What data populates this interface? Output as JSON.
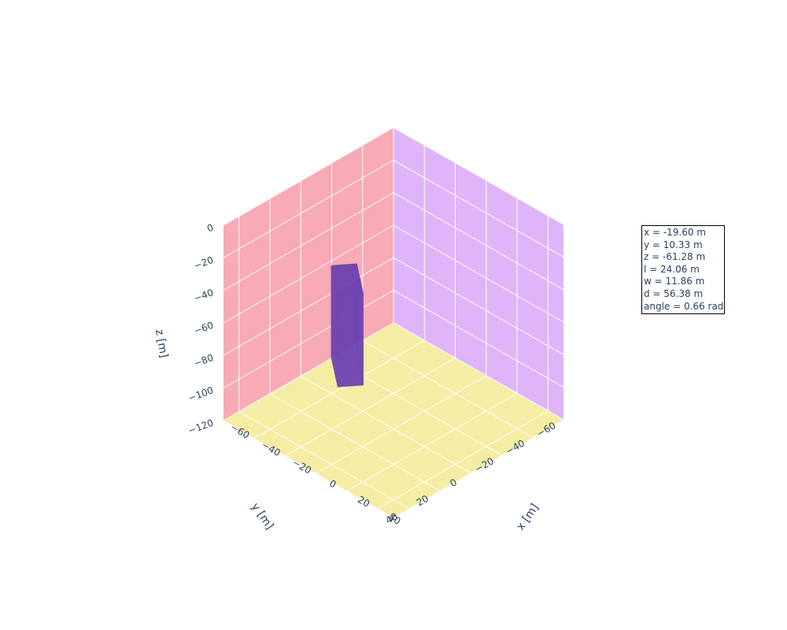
{
  "chart_data": {
    "type": "mesh3d",
    "axes": {
      "x": {
        "title": "x [m]",
        "range": [
          -60,
          50
        ],
        "ticks": [
          "−60",
          "−40",
          "−20",
          "0",
          "20",
          "40"
        ],
        "tick_values": [
          -60,
          -40,
          -20,
          0,
          20,
          40
        ]
      },
      "y": {
        "title": "y [m]",
        "range": [
          -60,
          50
        ],
        "ticks": [
          "−60",
          "−40",
          "−20",
          "0",
          "20",
          "40"
        ],
        "tick_values": [
          -60,
          -40,
          -20,
          0,
          20,
          40
        ]
      },
      "z": {
        "title": "z [m]",
        "range": [
          -120,
          0
        ],
        "ticks": [
          "−120",
          "−100",
          "−80",
          "−60",
          "−40",
          "−20",
          "0"
        ],
        "tick_values": [
          -120,
          -100,
          -80,
          -60,
          -40,
          -20,
          0
        ]
      }
    },
    "planes": {
      "xz_color": "#f8aab5",
      "yz_color": "#e0b4f8",
      "xy_color": "#f4eda3",
      "grid_color": "#ffffff"
    },
    "box": {
      "x": -19.6,
      "y": 10.33,
      "z": -61.28,
      "l": 24.06,
      "w": 11.86,
      "d": 56.38,
      "angle": 0.66,
      "color": "#6a3fb0"
    }
  },
  "annotation": {
    "lines": [
      "x = -19.60 m",
      "y = 10.33 m",
      "z = -61.28 m",
      "l = 24.06 m",
      "w = 11.86 m",
      "d = 56.38 m",
      "angle = 0.66 rad"
    ]
  }
}
